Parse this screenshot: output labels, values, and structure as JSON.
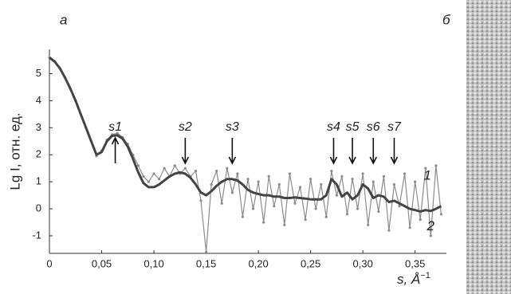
{
  "chart_data": {
    "type": "line",
    "panel_left": "а",
    "panel_right": "б",
    "ylabel": "Lg I, отн. ед.",
    "xlabel": "s, Å",
    "xlabel_sup": "−1",
    "xlim": [
      0,
      0.38
    ],
    "ylim": [
      -1.65,
      5.9
    ],
    "xticks": [
      0,
      {
        "value": 0.05,
        "label": "0,05"
      },
      {
        "value": 0.1,
        "label": "0,10"
      },
      {
        "value": 0.15,
        "label": "0,15"
      },
      {
        "value": 0.2,
        "label": "0,20"
      },
      {
        "value": 0.25,
        "label": "0,25"
      },
      {
        "value": 0.3,
        "label": "0,30"
      },
      {
        "value": 0.35,
        "label": "0,35"
      }
    ],
    "yticks": [
      -1,
      0,
      1,
      2,
      3,
      4,
      5
    ],
    "grid": false,
    "x": [
      0,
      0.005,
      0.01,
      0.015,
      0.02,
      0.025,
      0.03,
      0.035,
      0.04,
      0.045,
      0.05,
      0.055,
      0.06,
      0.065,
      0.07,
      0.075,
      0.08,
      0.085,
      0.09,
      0.095,
      0.1,
      0.105,
      0.11,
      0.115,
      0.12,
      0.125,
      0.13,
      0.135,
      0.14,
      0.145,
      0.15,
      0.155,
      0.16,
      0.165,
      0.17,
      0.175,
      0.18,
      0.185,
      0.19,
      0.195,
      0.2,
      0.205,
      0.21,
      0.215,
      0.22,
      0.225,
      0.23,
      0.235,
      0.24,
      0.245,
      0.25,
      0.255,
      0.26,
      0.265,
      0.27,
      0.275,
      0.28,
      0.285,
      0.29,
      0.295,
      0.3,
      0.305,
      0.31,
      0.315,
      0.32,
      0.325,
      0.33,
      0.335,
      0.34,
      0.345,
      0.35,
      0.355,
      0.36,
      0.365,
      0.37,
      0.375
    ],
    "series": [
      {
        "name": "1",
        "color": "#8c8c8c",
        "markers": true,
        "width": 1.2,
        "values": [
          5.6,
          5.45,
          5.2,
          4.85,
          4.45,
          4.0,
          3.5,
          3.0,
          2.5,
          1.95,
          2.15,
          2.55,
          2.75,
          2.8,
          2.65,
          2.4,
          2.0,
          1.6,
          1.2,
          1.0,
          1.3,
          1.1,
          1.5,
          1.2,
          1.6,
          1.3,
          1.5,
          1.2,
          1.4,
          0.3,
          -1.6,
          0.9,
          1.4,
          0.2,
          1.5,
          0.6,
          1.3,
          -0.3,
          1.1,
          0.0,
          1.0,
          -0.5,
          1.2,
          0.1,
          0.9,
          -0.6,
          1.3,
          0.2,
          0.8,
          -0.4,
          1.1,
          0.0,
          0.9,
          -0.3,
          1.4,
          0.5,
          1.2,
          -0.2,
          1.1,
          0.0,
          1.3,
          -0.6,
          1.0,
          -0.1,
          1.2,
          -0.8,
          0.9,
          0.1,
          1.3,
          -0.7,
          1.0,
          -0.4,
          1.5,
          -1.0,
          1.6,
          -0.2
        ]
      },
      {
        "name": "2",
        "color": "#444444",
        "markers": false,
        "width": 3,
        "values": [
          5.6,
          5.45,
          5.2,
          4.85,
          4.45,
          4.0,
          3.5,
          3.0,
          2.5,
          2.0,
          2.1,
          2.5,
          2.7,
          2.72,
          2.6,
          2.3,
          1.85,
          1.35,
          0.95,
          0.8,
          0.8,
          0.9,
          1.05,
          1.2,
          1.3,
          1.35,
          1.3,
          1.15,
          0.9,
          0.6,
          0.5,
          0.65,
          0.85,
          1.0,
          1.1,
          1.1,
          1.05,
          0.9,
          0.7,
          0.6,
          0.55,
          0.5,
          0.5,
          0.45,
          0.45,
          0.4,
          0.4,
          0.42,
          0.4,
          0.38,
          0.35,
          0.35,
          0.35,
          0.5,
          1.1,
          0.9,
          0.45,
          0.6,
          0.35,
          0.5,
          0.9,
          0.75,
          0.4,
          0.5,
          0.45,
          0.25,
          0.3,
          0.2,
          0.1,
          0.0,
          -0.05,
          -0.1,
          -0.05,
          -0.08,
          0.0,
          0.1
        ]
      }
    ],
    "annotations": [
      {
        "text": "s1",
        "x": 0.063,
        "direction": "up"
      },
      {
        "text": "s2",
        "x": 0.13,
        "direction": "down"
      },
      {
        "text": "s3",
        "x": 0.175,
        "direction": "down"
      },
      {
        "text": "s4",
        "x": 0.272,
        "direction": "down"
      },
      {
        "text": "s5",
        "x": 0.29,
        "direction": "down"
      },
      {
        "text": "s6",
        "x": 0.31,
        "direction": "down"
      },
      {
        "text": "s7",
        "x": 0.33,
        "direction": "down"
      }
    ]
  }
}
